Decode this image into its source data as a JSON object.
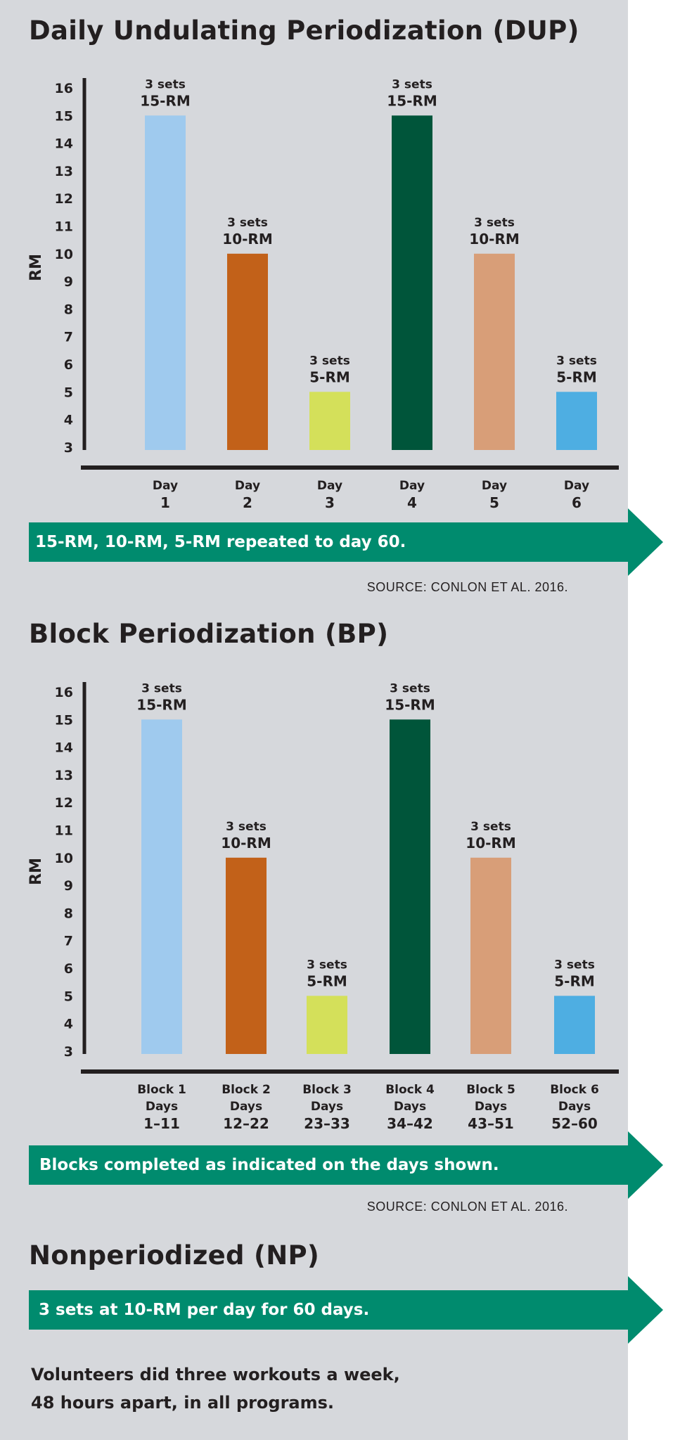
{
  "colors": {
    "panel_background": "#d6d8dc",
    "banner": "#008b6e",
    "text": "#231f20",
    "bars": [
      "#9fcaee",
      "#c26119",
      "#d4e05a",
      "#00553a",
      "#d89e78",
      "#4eaee2"
    ]
  },
  "charts": [
    {
      "title": "Daily Undulating Periodization (DUP)",
      "banner": "15-RM, 10-RM, 5-RM repeated to day 60.",
      "source": "SOURCE: CONLON ET AL. 2016."
    },
    {
      "title": "Block Periodization (BP)",
      "banner": "Blocks completed as indicated on the days shown.",
      "source": "SOURCE: CONLON ET AL. 2016."
    }
  ],
  "np": {
    "title": "Nonperiodized (NP)",
    "banner": "3 sets at 10-RM per day for 60 days."
  },
  "footnote": {
    "line1": "Volunteers did three workouts a week,",
    "line2": "48 hours apart, in all programs."
  },
  "chart_data": [
    {
      "type": "bar",
      "title": "Daily Undulating Periodization (DUP)",
      "ylabel": "RM",
      "xlabel": "",
      "ylim": [
        3,
        16
      ],
      "yticks": [
        3,
        4,
        5,
        6,
        7,
        8,
        9,
        10,
        11,
        12,
        13,
        14,
        15,
        16
      ],
      "grid": false,
      "categories": [
        [
          "Day",
          "1"
        ],
        [
          "Day",
          "2"
        ],
        [
          "Day",
          "3"
        ],
        [
          "Day",
          "4"
        ],
        [
          "Day",
          "5"
        ],
        [
          "Day",
          "6"
        ]
      ],
      "values": [
        15,
        10,
        5,
        15,
        10,
        5
      ],
      "data_labels": [
        [
          "3 sets",
          "15-RM"
        ],
        [
          "3 sets",
          "10-RM"
        ],
        [
          "3 sets",
          "5-RM"
        ],
        [
          "3 sets",
          "15-RM"
        ],
        [
          "3 sets",
          "10-RM"
        ],
        [
          "3 sets",
          "5-RM"
        ]
      ]
    },
    {
      "type": "bar",
      "title": "Block Periodization (BP)",
      "ylabel": "RM",
      "xlabel": "",
      "ylim": [
        3,
        16
      ],
      "yticks": [
        3,
        4,
        5,
        6,
        7,
        8,
        9,
        10,
        11,
        12,
        13,
        14,
        15,
        16
      ],
      "grid": false,
      "categories": [
        [
          "Block 1",
          "Days",
          "1–11"
        ],
        [
          "Block 2",
          "Days",
          "12–22"
        ],
        [
          "Block 3",
          "Days",
          "23–33"
        ],
        [
          "Block 4",
          "Days",
          "34–42"
        ],
        [
          "Block 5",
          "Days",
          "43–51"
        ],
        [
          "Block 6",
          "Days",
          "52–60"
        ]
      ],
      "values": [
        15,
        10,
        5,
        15,
        10,
        5
      ],
      "data_labels": [
        [
          "3 sets",
          "15-RM"
        ],
        [
          "3 sets",
          "10-RM"
        ],
        [
          "3 sets",
          "5-RM"
        ],
        [
          "3 sets",
          "15-RM"
        ],
        [
          "3 sets",
          "10-RM"
        ],
        [
          "3 sets",
          "5-RM"
        ]
      ]
    }
  ]
}
